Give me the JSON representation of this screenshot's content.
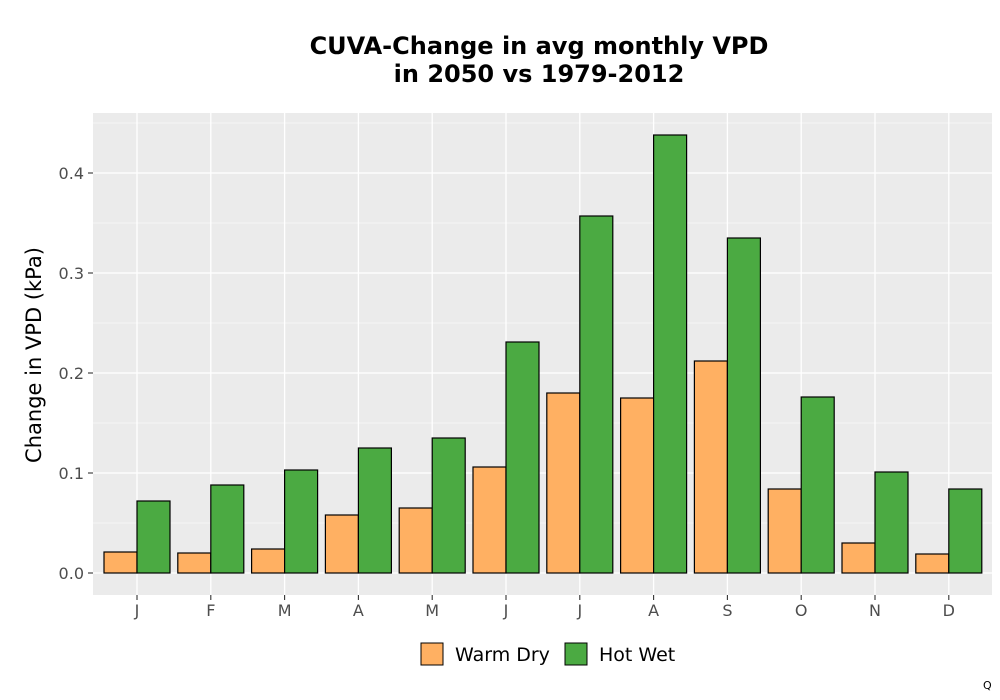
{
  "chart_data": {
    "type": "bar",
    "title": [
      "CUVA-Change in avg monthly VPD",
      "in 2050 vs 1979-2012"
    ],
    "xlabel": "",
    "ylabel": "Change in VPD (kPa)",
    "categories": [
      "J",
      "F",
      "M",
      "A",
      "M",
      "J",
      "J",
      "A",
      "S",
      "O",
      "N",
      "D"
    ],
    "series": [
      {
        "name": "Warm Dry",
        "color": "#FFB062",
        "values": [
          0.021,
          0.02,
          0.024,
          0.058,
          0.065,
          0.106,
          0.18,
          0.175,
          0.212,
          0.084,
          0.03,
          0.019
        ]
      },
      {
        "name": "Hot Wet",
        "color": "#4BAA42",
        "values": [
          0.072,
          0.088,
          0.103,
          0.125,
          0.135,
          0.231,
          0.357,
          0.438,
          0.335,
          0.176,
          0.101,
          0.084
        ]
      }
    ],
    "yticks": [
      0.0,
      0.1,
      0.2,
      0.3,
      0.4
    ],
    "ytick_labels": [
      "0.0",
      "0.1",
      "0.2",
      "0.3",
      "0.4"
    ],
    "ylim": [
      -0.022,
      0.46
    ],
    "grid": true,
    "legend_position": "bottom"
  },
  "corner_mark": "Q"
}
